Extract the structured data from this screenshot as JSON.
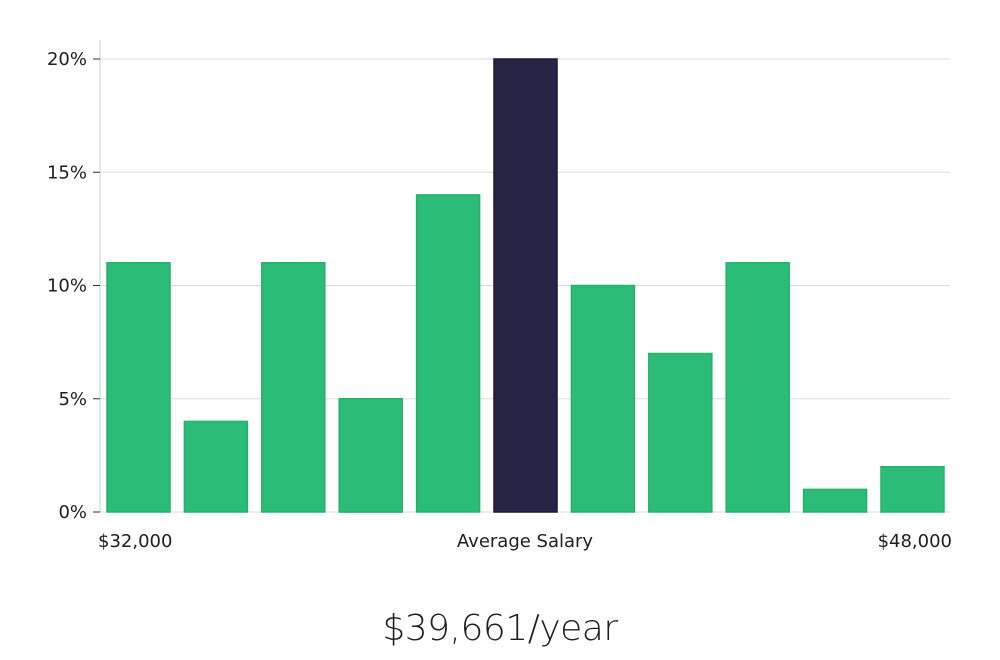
{
  "chart_data": {
    "type": "bar",
    "ylim": [
      0,
      20
    ],
    "y_ticks": [
      0,
      5,
      10,
      15,
      20
    ],
    "y_tick_labels": [
      "0%",
      "5%",
      "10%",
      "15%",
      "20%"
    ],
    "values": [
      11,
      4,
      11,
      5,
      14,
      20,
      10,
      7,
      11,
      1,
      2
    ],
    "highlight_index": 5,
    "x_labels": {
      "left": "$32,000",
      "center": "Average Salary",
      "right": "$48,000"
    },
    "grid": true,
    "colors": {
      "bar": "#2bbd77",
      "highlight": "#272445",
      "grid": "#dddddd",
      "axis": "#cccccc"
    }
  },
  "summary": {
    "average_salary": "$39,661/year"
  }
}
